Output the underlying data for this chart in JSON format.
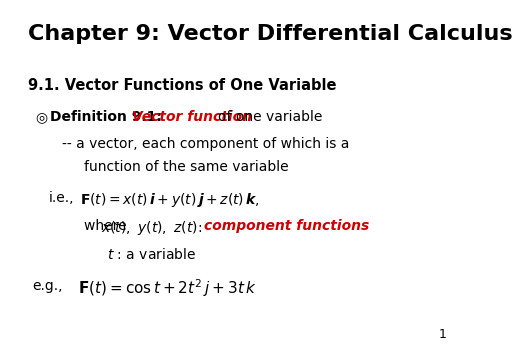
{
  "title": "Chapter 9: Vector Differential Calculus",
  "bg_color": "#ffffff",
  "text_color": "#000000",
  "red_color": "#cc0000",
  "section": "9.1. Vector Functions of One Variable",
  "bullet": "◎",
  "def_bold": "Definition 9.1:",
  "def_red": "Vector function",
  "def_black": "of one variable",
  "cont1": "-- a vector, each component of which is a",
  "cont2": "function of the same variable",
  "ie": "i.e.,",
  "where_text": "where ",
  "where_math": "$x(t),\\ y(t),\\ z(t)$:",
  "comp_func": "component functions",
  "t_line": "t : a variable",
  "eg": "e.g.,",
  "page": "1"
}
